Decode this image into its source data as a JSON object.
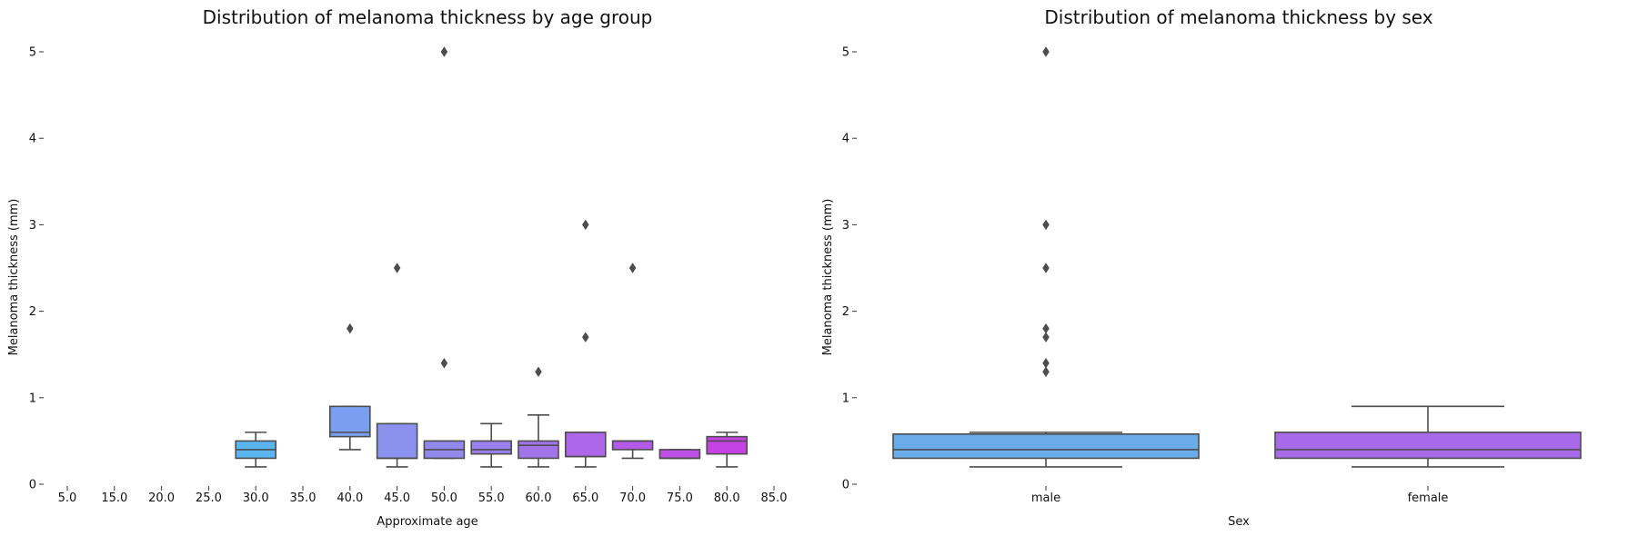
{
  "chart_data": [
    {
      "type": "box",
      "title": "Distribution of melanoma thickness by age group",
      "xlabel": "Approximate age",
      "ylabel": "Melanoma thickness (mm)",
      "ylim": [
        0,
        5
      ],
      "yticks": [
        "0",
        "1",
        "2",
        "3",
        "4",
        "5"
      ],
      "categories": [
        "5.0",
        "15.0",
        "20.0",
        "25.0",
        "30.0",
        "35.0",
        "40.0",
        "45.0",
        "50.0",
        "55.0",
        "60.0",
        "65.0",
        "70.0",
        "75.0",
        "80.0",
        "85.0"
      ],
      "grid": false,
      "boxes": [
        {
          "category": "30.0",
          "color": "#5ab4f0",
          "q1": 0.3,
          "median": 0.4,
          "q3": 0.5,
          "whisker_low": 0.2,
          "whisker_high": 0.6,
          "outliers": []
        },
        {
          "category": "40.0",
          "color": "#7a9ef0",
          "q1": 0.55,
          "median": 0.6,
          "q3": 0.9,
          "whisker_low": 0.4,
          "whisker_high": 0.9,
          "outliers": [
            1.8
          ]
        },
        {
          "category": "45.0",
          "color": "#8a92ee",
          "q1": 0.3,
          "median": 0.3,
          "q3": 0.7,
          "whisker_low": 0.2,
          "whisker_high": 0.7,
          "outliers": [
            2.5
          ]
        },
        {
          "category": "50.0",
          "color": "#9288ec",
          "q1": 0.3,
          "median": 0.4,
          "q3": 0.5,
          "whisker_low": 0.3,
          "whisker_high": 0.5,
          "outliers": [
            5.0,
            1.4
          ]
        },
        {
          "category": "55.0",
          "color": "#9a80ec",
          "q1": 0.35,
          "median": 0.4,
          "q3": 0.5,
          "whisker_low": 0.2,
          "whisker_high": 0.7,
          "outliers": []
        },
        {
          "category": "60.0",
          "color": "#a274ea",
          "q1": 0.3,
          "median": 0.45,
          "q3": 0.5,
          "whisker_low": 0.2,
          "whisker_high": 0.8,
          "outliers": [
            1.3
          ]
        },
        {
          "category": "65.0",
          "color": "#ad66ea",
          "q1": 0.32,
          "median": 0.32,
          "q3": 0.6,
          "whisker_low": 0.2,
          "whisker_high": 0.6,
          "outliers": [
            3.0,
            1.7
          ]
        },
        {
          "category": "70.0",
          "color": "#b55ae8",
          "q1": 0.4,
          "median": 0.5,
          "q3": 0.5,
          "whisker_low": 0.3,
          "whisker_high": 0.5,
          "outliers": [
            2.5
          ]
        },
        {
          "category": "75.0",
          "color": "#bd4ee6",
          "q1": 0.3,
          "median": 0.3,
          "q3": 0.4,
          "whisker_low": 0.3,
          "whisker_high": 0.4,
          "outliers": []
        },
        {
          "category": "80.0",
          "color": "#c542e4",
          "q1": 0.35,
          "median": 0.5,
          "q3": 0.55,
          "whisker_low": 0.2,
          "whisker_high": 0.6,
          "outliers": []
        }
      ]
    },
    {
      "type": "box",
      "title": "Distribution of melanoma thickness by sex",
      "xlabel": "Sex",
      "ylabel": "Melanoma thickness (mm)",
      "ylim": [
        0,
        5
      ],
      "yticks": [
        "0",
        "1",
        "2",
        "3",
        "4",
        "5"
      ],
      "categories": [
        "male",
        "female"
      ],
      "grid": false,
      "boxes": [
        {
          "category": "male",
          "color": "#6aace9",
          "q1": 0.3,
          "median": 0.4,
          "q3": 0.58,
          "whisker_low": 0.2,
          "whisker_high": 0.6,
          "outliers": [
            5.0,
            3.0,
            2.5,
            1.8,
            1.7,
            1.4,
            1.3
          ]
        },
        {
          "category": "female",
          "color": "#a86ae9",
          "q1": 0.3,
          "median": 0.4,
          "q3": 0.6,
          "whisker_low": 0.2,
          "whisker_high": 0.9,
          "outliers": []
        }
      ]
    }
  ]
}
